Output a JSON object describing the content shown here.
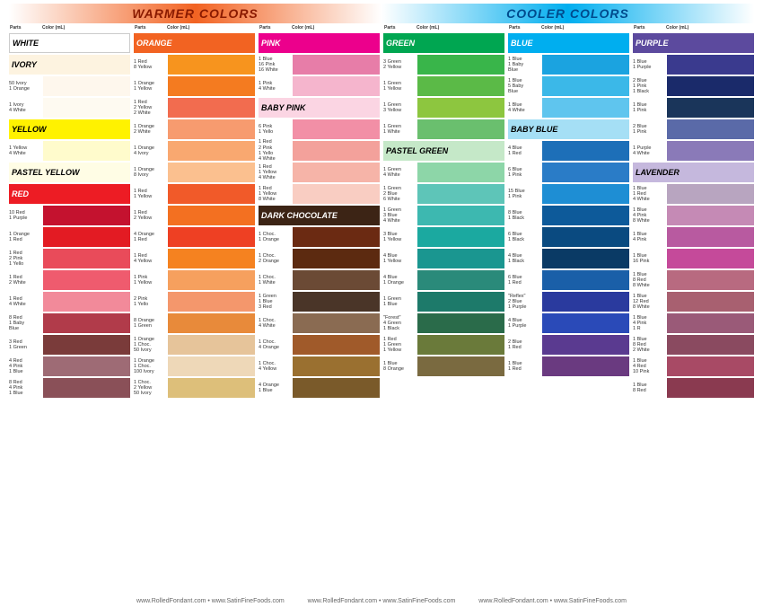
{
  "headers": {
    "warm": "WARMER COLORS",
    "cool": "COOLER COLORS"
  },
  "colheader": {
    "parts": "Parts",
    "color": "Color (mL)"
  },
  "footer": [
    "www.RolledFondant.com  •  www.SatinFineFoods.com",
    "www.RolledFondant.com  •  www.SatinFineFoods.com",
    "www.RolledFondant.com  •  www.SatinFineFoods.com"
  ],
  "columns": [
    {
      "items": [
        {
          "type": "section",
          "label": "WHITE",
          "bg": "#ffffff",
          "fg": "#000",
          "border": true
        },
        {
          "type": "section",
          "label": "IVORY",
          "bg": "#fdf3e0",
          "fg": "#000"
        },
        {
          "type": "row",
          "recipe": [
            "50 Ivory",
            "1 Orange"
          ],
          "color": "#fef7ed"
        },
        {
          "type": "row",
          "recipe": [
            "1 Ivory",
            "4 White"
          ],
          "color": "#fefaf1"
        },
        {
          "type": "section",
          "label": "YELLOW",
          "bg": "#fff200",
          "fg": "#000"
        },
        {
          "type": "row",
          "recipe": [
            "1 Yellow",
            "4 White"
          ],
          "color": "#fffbcc"
        },
        {
          "type": "section",
          "label": "PASTEL YELLOW",
          "bg": "#fffde5",
          "fg": "#000"
        },
        {
          "type": "section",
          "label": "RED",
          "bg": "#ed1c24",
          "fg": "#fff"
        },
        {
          "type": "row",
          "recipe": [
            "10 Red",
            "1 Purple"
          ],
          "color": "#c4122f"
        },
        {
          "type": "row",
          "recipe": [
            "1 Orange",
            "1 Red"
          ],
          "color": "#e31b23"
        },
        {
          "type": "row",
          "recipe": [
            "1 Red",
            "2 Pink",
            "1 Yello"
          ],
          "color": "#e94b5a"
        },
        {
          "type": "row",
          "recipe": [
            "1 Red",
            "2 White"
          ],
          "color": "#ef5b6e"
        },
        {
          "type": "row",
          "recipe": [
            "1 Red",
            "4 White"
          ],
          "color": "#f28a9a"
        },
        {
          "type": "row",
          "recipe": [
            "8 Red",
            "1 Baby",
            "Blue"
          ],
          "color": "#b13b4a"
        },
        {
          "type": "row",
          "recipe": [
            "3 Red",
            "1 Green"
          ],
          "color": "#7a3b3a"
        },
        {
          "type": "row",
          "recipe": [
            "4 Red",
            "4 Pink",
            "1 Blue"
          ],
          "color": "#9e6b75"
        },
        {
          "type": "row",
          "recipe": [
            "8 Red",
            "4 Pink",
            "1 Blue"
          ],
          "color": "#8a5058"
        }
      ]
    },
    {
      "items": [
        {
          "type": "section",
          "label": "ORANGE",
          "bg": "#f26322",
          "fg": "#fff"
        },
        {
          "type": "row",
          "recipe": [
            "1 Red",
            "8 Yellow"
          ],
          "color": "#f7941e"
        },
        {
          "type": "row",
          "recipe": [
            "1 Orange",
            "1 Yellow"
          ],
          "color": "#f47b20"
        },
        {
          "type": "row",
          "recipe": [
            "1 Red",
            "2 Yellow",
            "2 White"
          ],
          "color": "#f26c4f"
        },
        {
          "type": "row",
          "recipe": [
            "1 Orange",
            "2 White"
          ],
          "color": "#f79b6f"
        },
        {
          "type": "row",
          "recipe": [
            "1 Orange",
            "4 Ivory"
          ],
          "color": "#f9a870"
        },
        {
          "type": "row",
          "recipe": [
            "1 Orange",
            "8 Ivory"
          ],
          "color": "#fbc08f"
        },
        {
          "type": "row",
          "recipe": [
            "1 Red",
            "1 Yellow"
          ],
          "color": "#f15a29"
        },
        {
          "type": "row",
          "recipe": [
            "1 Red",
            "2 Yellow"
          ],
          "color": "#f37021"
        },
        {
          "type": "row",
          "recipe": [
            "4 Orange",
            "1 Red"
          ],
          "color": "#ee4023"
        },
        {
          "type": "row",
          "recipe": [
            "1 Red",
            "4 Yellow"
          ],
          "color": "#f58220"
        },
        {
          "type": "row",
          "recipe": [
            "1 Pink",
            "1 Yellow"
          ],
          "color": "#f6a05e"
        },
        {
          "type": "row",
          "recipe": [
            "2 Pink",
            "1 Yello"
          ],
          "color": "#f4976c"
        },
        {
          "type": "row",
          "recipe": [
            "8 Orange",
            "1 Green"
          ],
          "color": "#e88a3a"
        },
        {
          "type": "row",
          "recipe": [
            "1 Orange",
            "1 Choc.",
            "50 Ivory"
          ],
          "color": "#e6c49a"
        },
        {
          "type": "row",
          "recipe": [
            "1 Orange",
            "1 Choc.",
            "100 Ivory"
          ],
          "color": "#eed8b8"
        },
        {
          "type": "row",
          "recipe": [
            "1 Choc.",
            "2 Yellow",
            "50 Ivory"
          ],
          "color": "#ddbf7a"
        }
      ]
    },
    {
      "items": [
        {
          "type": "section",
          "label": "PINK",
          "bg": "#ec008c",
          "fg": "#fff"
        },
        {
          "type": "row",
          "recipe": [
            "1 Blue",
            "16 Pink",
            "16 White"
          ],
          "color": "#e77da8"
        },
        {
          "type": "row",
          "recipe": [
            "1 Pink",
            "4 White"
          ],
          "color": "#f5b5cd"
        },
        {
          "type": "section",
          "label": "BABY PINK",
          "bg": "#fbd5e3",
          "fg": "#000"
        },
        {
          "type": "row",
          "recipe": [
            "6 Pink",
            "1 Yello"
          ],
          "color": "#f28fa6"
        },
        {
          "type": "row",
          "recipe": [
            "1 Red",
            "2 Pink",
            "1 Yello",
            "4 White"
          ],
          "color": "#f3a19b"
        },
        {
          "type": "row",
          "recipe": [
            "1 Red",
            "1 Yellow",
            "4 White"
          ],
          "color": "#f6b4a8"
        },
        {
          "type": "row",
          "recipe": [
            "1 Red",
            "1 Yellow",
            "8 White"
          ],
          "color": "#f9cdc2"
        },
        {
          "type": "section",
          "label": "DARK CHOCOLATE",
          "bg": "#3c2415",
          "fg": "#fff"
        },
        {
          "type": "row",
          "recipe": [
            "1 Choc.",
            "1 Orange"
          ],
          "color": "#6b2a12"
        },
        {
          "type": "row",
          "recipe": [
            "1 Choc.",
            "2 Orange"
          ],
          "color": "#5c2a10"
        },
        {
          "type": "row",
          "recipe": [
            "1 Choc.",
            "1 White"
          ],
          "color": "#6b4a35"
        },
        {
          "type": "row",
          "recipe": [
            "1 Green",
            "1 Blue",
            "3 Red"
          ],
          "color": "#4a3528"
        },
        {
          "type": "row",
          "recipe": [
            "1 Choc.",
            "4 White"
          ],
          "color": "#8a6b52"
        },
        {
          "type": "row",
          "recipe": [
            "1 Choc.",
            "4 Orange"
          ],
          "color": "#a05a2a"
        },
        {
          "type": "row",
          "recipe": [
            "1 Choc.",
            "4 Yellow"
          ],
          "color": "#9a7030"
        },
        {
          "type": "row",
          "recipe": [
            "4 Orange",
            "1 Blue"
          ],
          "color": "#7a5a2a"
        }
      ]
    },
    {
      "items": [
        {
          "type": "section",
          "label": "GREEN",
          "bg": "#00a651",
          "fg": "#fff"
        },
        {
          "type": "row",
          "recipe": [
            "3 Green",
            "2 Yellow"
          ],
          "color": "#39b54a"
        },
        {
          "type": "row",
          "recipe": [
            "1 Green",
            "1 Yellow"
          ],
          "color": "#5bba47"
        },
        {
          "type": "row",
          "recipe": [
            "1 Green",
            "3 Yellow"
          ],
          "color": "#8dc63f"
        },
        {
          "type": "row",
          "recipe": [
            "1 Green",
            "1 White"
          ],
          "color": "#6abf6e"
        },
        {
          "type": "section",
          "label": "PASTEL GREEN",
          "bg": "#c5e8c8",
          "fg": "#000"
        },
        {
          "type": "row",
          "recipe": [
            "1 Green",
            "4 White"
          ],
          "color": "#8dd6a8"
        },
        {
          "type": "row",
          "recipe": [
            "1 Green",
            "2 Blue",
            "6 White"
          ],
          "color": "#5ec5b8"
        },
        {
          "type": "row",
          "recipe": [
            "1 Green",
            "3 Blue",
            "4 White"
          ],
          "color": "#3db8b0"
        },
        {
          "type": "row",
          "recipe": [
            "3 Blue",
            "1 Yellow"
          ],
          "color": "#1ba9a0"
        },
        {
          "type": "row",
          "recipe": [
            "4 Blue",
            "1 Yellow"
          ],
          "color": "#1a9690"
        },
        {
          "type": "row",
          "recipe": [
            "4 Blue",
            "1 Orange"
          ],
          "color": "#2a8a7a"
        },
        {
          "type": "row",
          "recipe": [
            "1 Green",
            "1 Blue"
          ],
          "color": "#1d7a6a"
        },
        {
          "type": "row",
          "recipe": [
            "\"Forest\"",
            "4 Green",
            "1 Black"
          ],
          "color": "#2a6b4a"
        },
        {
          "type": "row",
          "recipe": [
            "1 Red",
            "1 Green",
            "1 Yellow"
          ],
          "color": "#6a7a3a"
        },
        {
          "type": "row",
          "recipe": [
            "1 Blue",
            "8 Orange"
          ],
          "color": "#7a6a40"
        }
      ]
    },
    {
      "items": [
        {
          "type": "section",
          "label": "BLUE",
          "bg": "#00aeef",
          "fg": "#fff"
        },
        {
          "type": "row",
          "recipe": [
            "1 Blue",
            "1 Baby",
            "Blue"
          ],
          "color": "#1ba3e0"
        },
        {
          "type": "row",
          "recipe": [
            "1 Blue",
            "5 Baby",
            "Blue"
          ],
          "color": "#3bb8e8"
        },
        {
          "type": "row",
          "recipe": [
            "1 Blue",
            "4 White"
          ],
          "color": "#5fc5ee"
        },
        {
          "type": "section",
          "label": "BABY BLUE",
          "bg": "#a5dff5",
          "fg": "#000"
        },
        {
          "type": "row",
          "recipe": [
            "4 Blue",
            "1 Red"
          ],
          "color": "#1d6fb8"
        },
        {
          "type": "row",
          "recipe": [
            "6 Blue",
            "1 Pink"
          ],
          "color": "#2a7cc7"
        },
        {
          "type": "row",
          "recipe": [
            "15 Blue",
            "1 Pink"
          ],
          "color": "#1e8ed4"
        },
        {
          "type": "row",
          "recipe": [
            "8 Blue",
            "1 Black"
          ],
          "color": "#0d5a9a"
        },
        {
          "type": "row",
          "recipe": [
            "6 Blue",
            "1 Black"
          ],
          "color": "#0a4a80"
        },
        {
          "type": "row",
          "recipe": [
            "4 Blue",
            "1 Black"
          ],
          "color": "#0a3a65"
        },
        {
          "type": "row",
          "recipe": [
            "6 Blue",
            "1 Red"
          ],
          "color": "#1a5fa8"
        },
        {
          "type": "row",
          "recipe": [
            "\"Reflex\"",
            "2 Blue",
            "1 Purple"
          ],
          "color": "#2a3a9e"
        },
        {
          "type": "row",
          "recipe": [
            "4 Blue",
            "1 Purple"
          ],
          "color": "#2a4ab8"
        },
        {
          "type": "row",
          "recipe": [
            "2 Blue",
            "1 Red"
          ],
          "color": "#5a3a90"
        },
        {
          "type": "row",
          "recipe": [
            "1 Blue",
            "1 Red"
          ],
          "color": "#6a3a80"
        }
      ]
    },
    {
      "items": [
        {
          "type": "section",
          "label": "PURPLE",
          "bg": "#5c4a9e",
          "fg": "#fff"
        },
        {
          "type": "row",
          "recipe": [
            "1 Blue",
            "1 Purple"
          ],
          "color": "#3a3a8e"
        },
        {
          "type": "row",
          "recipe": [
            "2 Blue",
            "1 Pink",
            "1 Black"
          ],
          "color": "#1a2a6a"
        },
        {
          "type": "row",
          "recipe": [
            "1 Blue",
            "1 Pink"
          ],
          "color": "#1a355a"
        },
        {
          "type": "row",
          "recipe": [
            "2 Blue",
            "1 Pink"
          ],
          "color": "#5a6aa8"
        },
        {
          "type": "row",
          "recipe": [
            "1 Purple",
            "4 White"
          ],
          "color": "#8a7ab8"
        },
        {
          "type": "section",
          "label": "LAVENDER",
          "bg": "#c5b8dd",
          "fg": "#000"
        },
        {
          "type": "row",
          "recipe": [
            "1 Blue",
            "1 Red",
            "4 White"
          ],
          "color": "#b8a5c0"
        },
        {
          "type": "row",
          "recipe": [
            "1 Blue",
            "4 Pink",
            "8 White"
          ],
          "color": "#c58ab5"
        },
        {
          "type": "row",
          "recipe": [
            "1 Blue",
            "4 Pink"
          ],
          "color": "#b85aa0"
        },
        {
          "type": "row",
          "recipe": [
            "1 Blue",
            "16 Pink"
          ],
          "color": "#c54a9a"
        },
        {
          "type": "row",
          "recipe": [
            "1 Blue",
            "8 Red",
            "8 White"
          ],
          "color": "#b86a80"
        },
        {
          "type": "row",
          "recipe": [
            "1 Blue",
            "12 Red",
            "8 White"
          ],
          "color": "#a86070"
        },
        {
          "type": "row",
          "recipe": [
            "1 Blue",
            "4 Pink",
            "1 R"
          ],
          "color": "#9a5a78"
        },
        {
          "type": "row",
          "recipe": [
            "1 Blue",
            "8 Red",
            "2 White"
          ],
          "color": "#8a4a60"
        },
        {
          "type": "row",
          "recipe": [
            "1 Blue",
            "4 Red",
            "10 Pink"
          ],
          "color": "#a84a65"
        },
        {
          "type": "row",
          "recipe": [
            "1 Blue",
            "8 Red"
          ],
          "color": "#8a3a50"
        }
      ]
    }
  ]
}
